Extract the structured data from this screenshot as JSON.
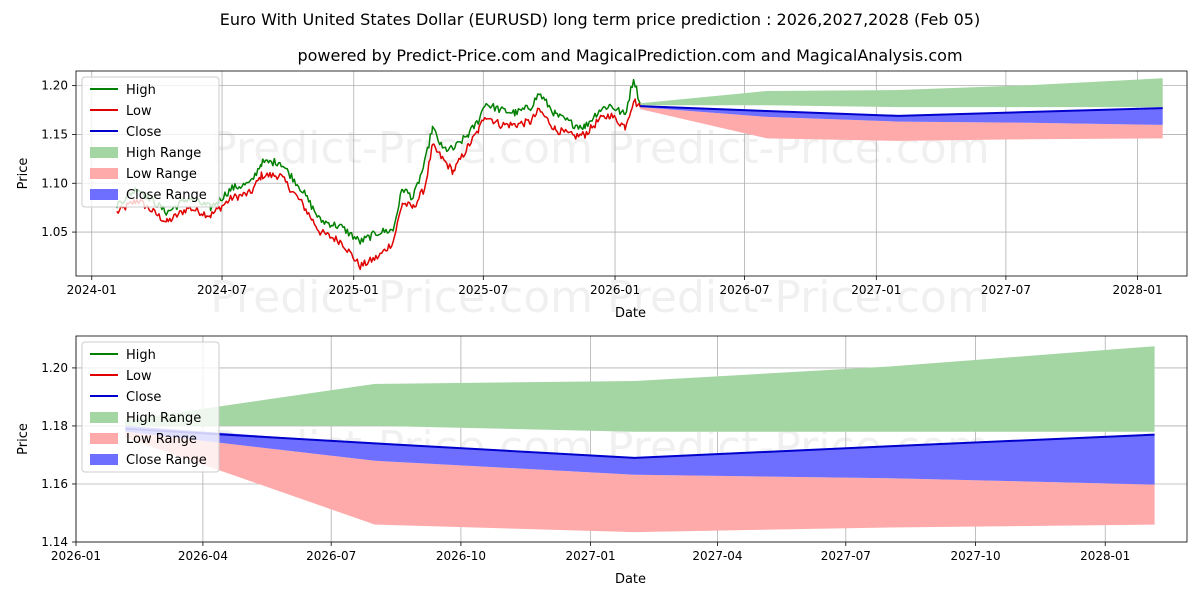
{
  "title": "Euro With United States Dollar (EURUSD) long term price prediction : 2026,2027,2028 (Feb 05)",
  "subtitle": "powered by Predict-Price.com and MagicalPrediction.com and MagicalAnalysis.com",
  "watermark": "Predict-Price.com",
  "colors": {
    "high": "#008000",
    "low": "#e00000",
    "close": "#0000cc",
    "high_range": "#a4d6a4",
    "low_range": "#ffaaaa",
    "close_range": "#6f6fff",
    "grid": "#b0b0b0"
  },
  "chart_data": [
    {
      "type": "line",
      "xlabel": "Date",
      "ylabel": "Price",
      "ylim": [
        1.005,
        1.215
      ],
      "xlim": [
        "2023-12-10",
        "2028-03-10"
      ],
      "x_ticks": [
        "2024-01-01",
        "2024-07-01",
        "2025-01-01",
        "2025-07-01",
        "2026-01-01",
        "2026-07-01",
        "2027-01-01",
        "2027-07-01",
        "2028-01-01"
      ],
      "x_tick_labels": [
        "2024-01",
        "2024-07",
        "2025-01",
        "2025-07",
        "2026-01",
        "2026-07",
        "2027-01",
        "2027-07",
        "2028-01"
      ],
      "y_ticks": [
        1.05,
        1.1,
        1.15,
        1.2
      ],
      "y_tick_labels": [
        "1.05",
        "1.10",
        "1.15",
        "1.20"
      ],
      "legend": {
        "position": "top-left",
        "entries": [
          {
            "label": "High",
            "kind": "line",
            "color_key": "high"
          },
          {
            "label": "Low",
            "kind": "line",
            "color_key": "low"
          },
          {
            "label": "Close",
            "kind": "line",
            "color_key": "close"
          },
          {
            "label": "High Range",
            "kind": "patch",
            "color_key": "high_range"
          },
          {
            "label": "Low Range",
            "kind": "patch",
            "color_key": "low_range"
          },
          {
            "label": "Close Range",
            "kind": "patch",
            "color_key": "close_range"
          }
        ]
      },
      "history_high": [
        [
          "2024-02-05",
          1.078
        ],
        [
          "2024-03-05",
          1.095
        ],
        [
          "2024-04-15",
          1.07
        ],
        [
          "2024-05-15",
          1.085
        ],
        [
          "2024-06-15",
          1.075
        ],
        [
          "2024-07-15",
          1.095
        ],
        [
          "2024-08-10",
          1.1
        ],
        [
          "2024-08-25",
          1.121
        ],
        [
          "2024-09-20",
          1.122
        ],
        [
          "2024-10-20",
          1.094
        ],
        [
          "2024-11-15",
          1.062
        ],
        [
          "2024-12-15",
          1.055
        ],
        [
          "2025-01-10",
          1.04
        ],
        [
          "2025-02-05",
          1.05
        ],
        [
          "2025-02-25",
          1.052
        ],
        [
          "2025-03-10",
          1.095
        ],
        [
          "2025-03-25",
          1.085
        ],
        [
          "2025-04-10",
          1.12
        ],
        [
          "2025-04-21",
          1.157
        ],
        [
          "2025-05-05",
          1.135
        ],
        [
          "2025-05-20",
          1.135
        ],
        [
          "2025-06-10",
          1.15
        ],
        [
          "2025-06-25",
          1.165
        ],
        [
          "2025-07-03",
          1.182
        ],
        [
          "2025-07-25",
          1.175
        ],
        [
          "2025-08-15",
          1.172
        ],
        [
          "2025-09-05",
          1.178
        ],
        [
          "2025-09-17",
          1.192
        ],
        [
          "2025-10-10",
          1.17
        ],
        [
          "2025-11-05",
          1.16
        ],
        [
          "2025-11-20",
          1.158
        ],
        [
          "2025-12-10",
          1.175
        ],
        [
          "2025-12-25",
          1.18
        ],
        [
          "2026-01-15",
          1.17
        ],
        [
          "2026-01-27",
          1.208
        ],
        [
          "2026-02-05",
          1.182
        ]
      ],
      "history_low": [
        [
          "2024-02-05",
          1.07
        ],
        [
          "2024-03-05",
          1.083
        ],
        [
          "2024-04-15",
          1.06
        ],
        [
          "2024-05-15",
          1.075
        ],
        [
          "2024-06-15",
          1.067
        ],
        [
          "2024-07-15",
          1.085
        ],
        [
          "2024-08-10",
          1.09
        ],
        [
          "2024-08-25",
          1.108
        ],
        [
          "2024-09-20",
          1.108
        ],
        [
          "2024-10-20",
          1.08
        ],
        [
          "2024-11-15",
          1.05
        ],
        [
          "2024-12-15",
          1.04
        ],
        [
          "2025-01-10",
          1.015
        ],
        [
          "2025-02-05",
          1.025
        ],
        [
          "2025-02-25",
          1.04
        ],
        [
          "2025-03-10",
          1.08
        ],
        [
          "2025-03-25",
          1.075
        ],
        [
          "2025-04-10",
          1.095
        ],
        [
          "2025-04-21",
          1.138
        ],
        [
          "2025-05-05",
          1.125
        ],
        [
          "2025-05-20",
          1.112
        ],
        [
          "2025-06-10",
          1.138
        ],
        [
          "2025-06-25",
          1.155
        ],
        [
          "2025-07-03",
          1.17
        ],
        [
          "2025-07-25",
          1.16
        ],
        [
          "2025-08-15",
          1.16
        ],
        [
          "2025-09-05",
          1.163
        ],
        [
          "2025-09-17",
          1.175
        ],
        [
          "2025-10-10",
          1.155
        ],
        [
          "2025-11-05",
          1.148
        ],
        [
          "2025-11-20",
          1.15
        ],
        [
          "2025-12-10",
          1.165
        ],
        [
          "2025-12-25",
          1.17
        ],
        [
          "2026-01-15",
          1.158
        ],
        [
          "2026-01-27",
          1.185
        ],
        [
          "2026-02-05",
          1.178
        ]
      ],
      "forecast": {
        "x": [
          "2026-02-05",
          "2026-08-01",
          "2027-02-01",
          "2027-08-01",
          "2028-02-05"
        ],
        "high_range_upper": [
          1.182,
          1.1945,
          1.1955,
          1.2005,
          1.2075
        ],
        "high_range_lower": [
          1.18,
          1.18,
          1.178,
          1.178,
          1.178
        ],
        "close": [
          1.179,
          1.174,
          1.169,
          1.173,
          1.177
        ],
        "close_range_upper": [
          1.18,
          1.1738,
          1.1692,
          1.173,
          1.177
        ],
        "close_range_lower": [
          1.178,
          1.168,
          1.1632,
          1.162,
          1.1598
        ],
        "low_range_upper": [
          1.178,
          1.168,
          1.1632,
          1.162,
          1.1598
        ],
        "low_range_lower": [
          1.176,
          1.146,
          1.1434,
          1.145,
          1.146
        ]
      }
    },
    {
      "type": "area",
      "xlabel": "Date",
      "ylabel": "Price",
      "ylim": [
        1.14,
        1.211
      ],
      "xlim": [
        "2026-01-01",
        "2028-02-28"
      ],
      "x_ticks": [
        "2026-01-01",
        "2026-04-01",
        "2026-07-01",
        "2026-10-01",
        "2027-01-01",
        "2027-04-01",
        "2027-07-01",
        "2027-10-01",
        "2028-01-01"
      ],
      "x_tick_labels": [
        "2026-01",
        "2026-04",
        "2026-07",
        "2026-10",
        "2027-01",
        "2027-04",
        "2027-07",
        "2027-10",
        "2028-01"
      ],
      "y_ticks": [
        1.14,
        1.16,
        1.18,
        1.2
      ],
      "y_tick_labels": [
        "1.14",
        "1.16",
        "1.18",
        "1.20"
      ],
      "legend": {
        "position": "top-left",
        "entries": [
          {
            "label": "High",
            "kind": "line",
            "color_key": "high"
          },
          {
            "label": "Low",
            "kind": "line",
            "color_key": "low"
          },
          {
            "label": "Close",
            "kind": "line",
            "color_key": "close"
          },
          {
            "label": "High Range",
            "kind": "patch",
            "color_key": "high_range"
          },
          {
            "label": "Low Range",
            "kind": "patch",
            "color_key": "low_range"
          },
          {
            "label": "Close Range",
            "kind": "patch",
            "color_key": "close_range"
          }
        ]
      },
      "forecast": {
        "x": [
          "2026-02-05",
          "2026-08-01",
          "2027-02-01",
          "2027-08-01",
          "2028-02-05"
        ],
        "high_range_upper": [
          1.182,
          1.1945,
          1.1955,
          1.2005,
          1.2075
        ],
        "high_range_lower": [
          1.18,
          1.18,
          1.178,
          1.178,
          1.178
        ],
        "close": [
          1.179,
          1.174,
          1.169,
          1.173,
          1.177
        ],
        "close_range_upper": [
          1.18,
          1.1738,
          1.1692,
          1.173,
          1.177
        ],
        "close_range_lower": [
          1.178,
          1.168,
          1.1632,
          1.162,
          1.1598
        ],
        "low_range_upper": [
          1.178,
          1.168,
          1.1632,
          1.162,
          1.1598
        ],
        "low_range_lower": [
          1.176,
          1.146,
          1.1434,
          1.145,
          1.146
        ]
      }
    }
  ]
}
